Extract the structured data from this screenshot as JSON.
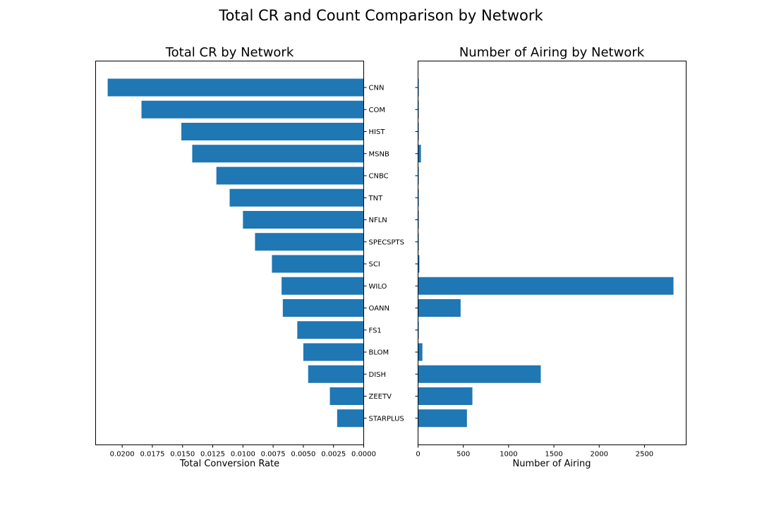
{
  "figure": {
    "title": "Total CR and Count Comparison by Network"
  },
  "chart_data": [
    {
      "type": "bar",
      "orientation": "horizontal",
      "title": "Total CR by Network",
      "xlabel": "Total Conversion Rate",
      "ylabel": "",
      "x_inverted": true,
      "xlim": [
        0.0,
        0.0222
      ],
      "xticks": [
        0.02,
        0.0175,
        0.015,
        0.0125,
        0.01,
        0.0075,
        0.005,
        0.0025,
        0.0
      ],
      "xtick_labels": [
        "0.0200",
        "0.0175",
        "0.0150",
        "0.0125",
        "0.0100",
        "0.0075",
        "0.0050",
        "0.0025",
        "0.0000"
      ],
      "yaxis_side": "right",
      "categories": [
        "CNN",
        "COM",
        "HIST",
        "MSNB",
        "CNBC",
        "TNT",
        "NFLN",
        "SPECSPTS",
        "SCI",
        "WILO",
        "OANN",
        "FS1",
        "BLOM",
        "DISH",
        "ZEETV",
        "STARPLUS"
      ],
      "values": [
        0.0212,
        0.0184,
        0.0151,
        0.0142,
        0.0122,
        0.0111,
        0.01,
        0.009,
        0.0076,
        0.0068,
        0.0067,
        0.0055,
        0.005,
        0.0046,
        0.0028,
        0.0022
      ],
      "color": "#1f77b4",
      "grid": false
    },
    {
      "type": "bar",
      "orientation": "horizontal",
      "title": "Number of Airing by Network",
      "xlabel": "Number of Airing",
      "ylabel": "",
      "xlim": [
        0,
        2960
      ],
      "xticks": [
        0,
        500,
        1000,
        1500,
        2000,
        2500
      ],
      "xtick_labels": [
        "0",
        "500",
        "1000",
        "1500",
        "2000",
        "2500"
      ],
      "categories": [
        "CNN",
        "COM",
        "HIST",
        "MSNB",
        "CNBC",
        "TNT",
        "NFLN",
        "SPECSPTS",
        "SCI",
        "WILO",
        "OANN",
        "FS1",
        "BLOM",
        "DISH",
        "ZEETV",
        "STARPLUS"
      ],
      "values": [
        2,
        2,
        2,
        32,
        2,
        2,
        2,
        2,
        15,
        2820,
        470,
        2,
        48,
        1355,
        600,
        540
      ],
      "color": "#1f77b4",
      "grid": false
    }
  ]
}
